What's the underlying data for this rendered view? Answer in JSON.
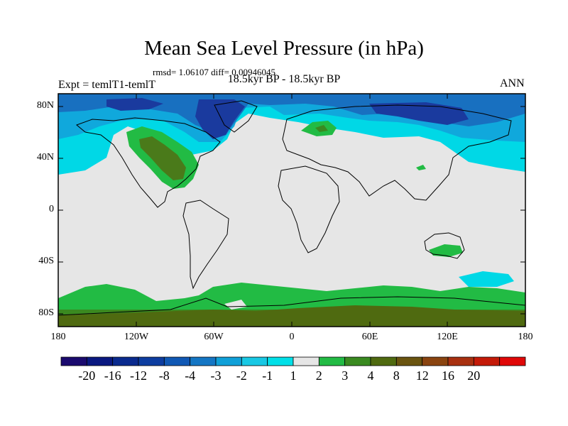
{
  "title": "Mean Sea Level Pressure (in hPa)",
  "stats": "rmsd= 1.06107 diff= 0.00946045",
  "period": "18.5kyr BP - 18.5kyr BP",
  "experiment": "Expt = temlT1-temlT",
  "season": "ANN",
  "lat_ticks": [
    "80N",
    "40N",
    "0",
    "40S",
    "80S"
  ],
  "lon_ticks": [
    "180",
    "120W",
    "60W",
    "0",
    "60E",
    "120E",
    "180"
  ],
  "colorbar": {
    "labels": [
      "-20",
      "-16",
      "-12",
      "-8",
      "-4",
      "-3",
      "-2",
      "-1",
      "1",
      "2",
      "3",
      "4",
      "8",
      "12",
      "16",
      "20"
    ],
    "colors": [
      "#1a0a6e",
      "#0a1880",
      "#0a2a8e",
      "#0d3da0",
      "#1058b4",
      "#1476c4",
      "#10a0d8",
      "#18c8e4",
      "#00e0e8",
      "#e6e6e6",
      "#22bb44",
      "#3a8a20",
      "#4f6a10",
      "#6a5410",
      "#8a4410",
      "#a83010",
      "#c41a08",
      "#e00808"
    ]
  },
  "colors": {
    "background": "#e6e6e6",
    "neg_strong": "#1a2a9e",
    "neg_medium": "#1476c4",
    "neg_light": "#10a0d8",
    "neg_weak": "#18c8e4",
    "pos_weak": "#22bb44",
    "pos_medium": "#3a8a20",
    "pos_strong": "#4f6a10"
  }
}
